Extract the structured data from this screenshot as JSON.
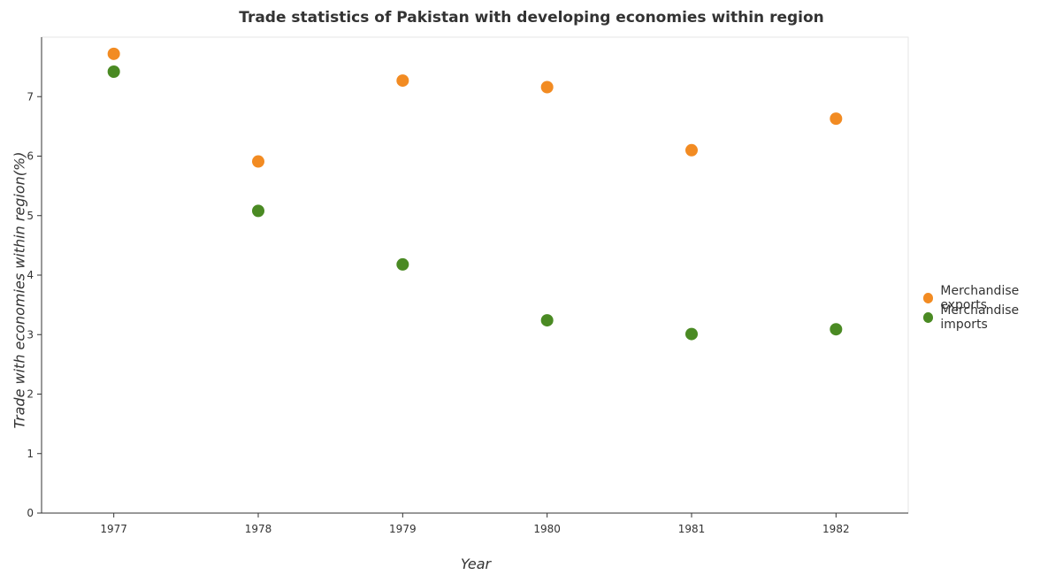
{
  "chart_data": {
    "type": "scatter",
    "title": "Trade statistics of Pakistan with developing economies within region",
    "xlabel": "Year",
    "ylabel": "Trade with economies within region(%)",
    "categories": [
      "1977",
      "1978",
      "1979",
      "1980",
      "1981",
      "1982"
    ],
    "ylim": [
      0,
      8
    ],
    "yticks": [
      "0",
      "1",
      "2",
      "3",
      "4",
      "5",
      "6",
      "7"
    ],
    "series": [
      {
        "name": "Merchandise exports",
        "color": "#f28b22",
        "values": [
          7.72,
          5.91,
          7.27,
          7.16,
          6.1,
          6.63
        ]
      },
      {
        "name": "Merchandise imports",
        "color": "#4a8a23",
        "values": [
          7.42,
          5.08,
          4.18,
          3.24,
          3.01,
          3.09
        ]
      }
    ],
    "legend_position": "right",
    "grid": false
  }
}
